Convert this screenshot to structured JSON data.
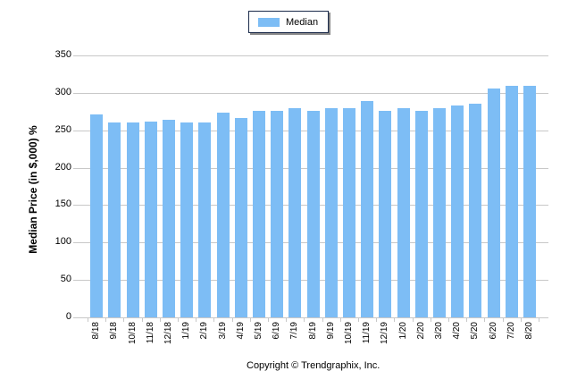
{
  "legend": {
    "label": "Median",
    "color": "#7dbdf5"
  },
  "copyright": "Copyright © Trendgraphix, Inc.",
  "chart_data": {
    "type": "bar",
    "title": "",
    "xlabel": "",
    "ylabel": "Median Price (in $,000) %",
    "ylim": [
      0,
      350
    ],
    "yticks": [
      0,
      50,
      100,
      150,
      200,
      250,
      300,
      350
    ],
    "grid": true,
    "legend_position": "top",
    "categories": [
      "8/18",
      "9/18",
      "10/18",
      "11/18",
      "12/18",
      "1/19",
      "2/19",
      "3/19",
      "4/19",
      "5/19",
      "6/19",
      "7/19",
      "8/19",
      "9/19",
      "10/19",
      "11/19",
      "12/19",
      "1/20",
      "2/20",
      "3/20",
      "4/20",
      "5/20",
      "6/20",
      "7/20",
      "8/20"
    ],
    "series": [
      {
        "name": "Median",
        "color": "#7dbdf5",
        "values": [
          271,
          260,
          260,
          262,
          264,
          260,
          260,
          273,
          266,
          276,
          276,
          279,
          276,
          279,
          279,
          289,
          276,
          280,
          276,
          279,
          283,
          286,
          306,
          310,
          310
        ]
      }
    ]
  }
}
